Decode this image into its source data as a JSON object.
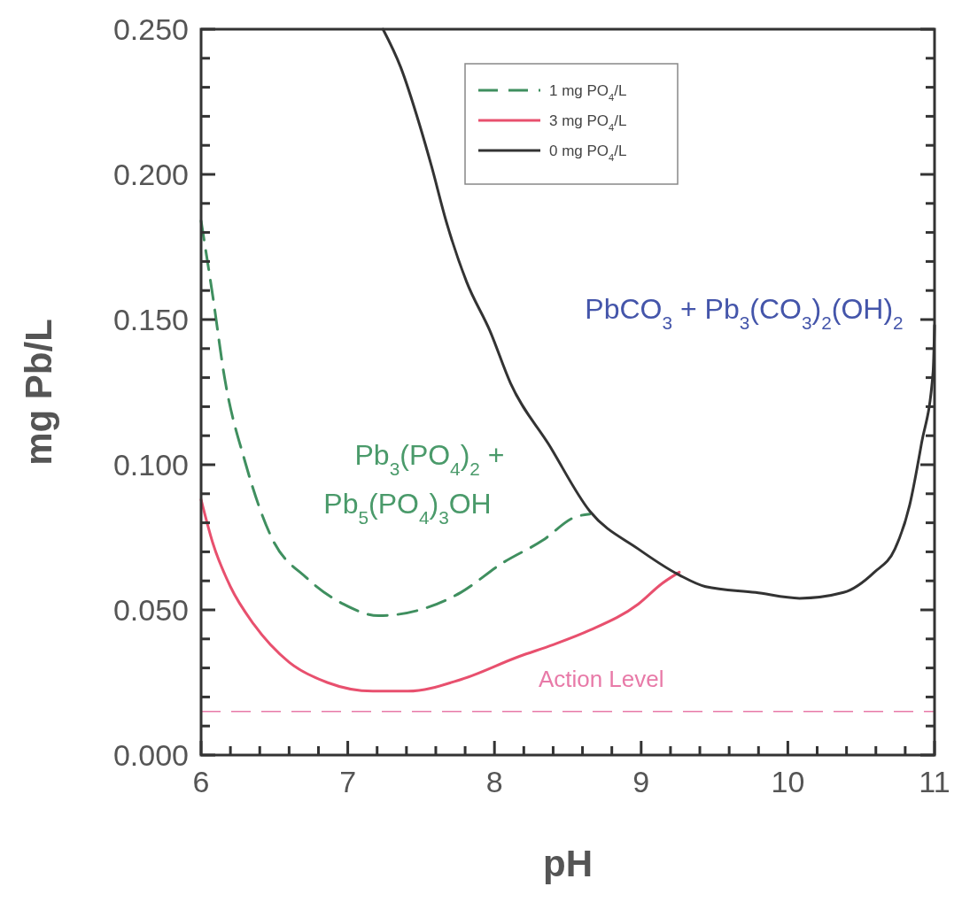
{
  "chart_data": {
    "type": "line",
    "xlabel": "pH",
    "ylabel": "mg Pb/L",
    "xlim": [
      6,
      11
    ],
    "ylim": [
      0,
      0.25
    ],
    "xticks": [
      6,
      {
        "value": 6.2,
        "label": null
      },
      {
        "value": 6.4,
        "label": null
      },
      {
        "value": 6.6,
        "label": null
      },
      {
        "value": 6.8,
        "label": null
      },
      7,
      {
        "value": 7.2,
        "label": null
      },
      {
        "value": 7.4,
        "label": null
      },
      {
        "value": 7.6,
        "label": null
      },
      {
        "value": 7.8,
        "label": null
      },
      8,
      {
        "value": 8.2,
        "label": null
      },
      {
        "value": 8.4,
        "label": null
      },
      {
        "value": 8.6,
        "label": null
      },
      {
        "value": 8.8,
        "label": null
      },
      9,
      {
        "value": 9.2,
        "label": null
      },
      {
        "value": 9.4,
        "label": null
      },
      {
        "value": 9.6,
        "label": null
      },
      {
        "value": 9.8,
        "label": null
      },
      10,
      {
        "value": 10.2,
        "label": null
      },
      {
        "value": 10.4,
        "label": null
      },
      {
        "value": 10.6,
        "label": null
      },
      {
        "value": 10.8,
        "label": null
      },
      11
    ],
    "yticks": [
      {
        "value": 0,
        "label": "0.000"
      },
      {
        "value": 0.01,
        "label": null
      },
      {
        "value": 0.02,
        "label": null
      },
      {
        "value": 0.03,
        "label": null
      },
      {
        "value": 0.04,
        "label": null
      },
      {
        "value": 0.05,
        "label": "0.050"
      },
      {
        "value": 0.06,
        "label": null
      },
      {
        "value": 0.07,
        "label": null
      },
      {
        "value": 0.08,
        "label": null
      },
      {
        "value": 0.09,
        "label": null
      },
      {
        "value": 0.1,
        "label": "0.100"
      },
      {
        "value": 0.11,
        "label": null
      },
      {
        "value": 0.12,
        "label": null
      },
      {
        "value": 0.13,
        "label": null
      },
      {
        "value": 0.14,
        "label": null
      },
      {
        "value": 0.15,
        "label": "0.150"
      },
      {
        "value": 0.16,
        "label": null
      },
      {
        "value": 0.17,
        "label": null
      },
      {
        "value": 0.18,
        "label": null
      },
      {
        "value": 0.19,
        "label": null
      },
      {
        "value": 0.2,
        "label": "0.200"
      },
      {
        "value": 0.21,
        "label": null
      },
      {
        "value": 0.22,
        "label": null
      },
      {
        "value": 0.23,
        "label": null
      },
      {
        "value": 0.24,
        "label": null
      },
      {
        "value": 0.25,
        "label": "0.250"
      }
    ],
    "grid": false,
    "legend": "top",
    "series": [
      {
        "name": "1 mg PO$_{4}$/L",
        "color": "#3f8f5f",
        "line_style": "dashed",
        "x": [
          6.0,
          6.08,
          6.16,
          6.3,
          6.48,
          6.72,
          6.97,
          7.21,
          7.49,
          7.77,
          8.05,
          8.33,
          8.55,
          8.65
        ],
        "values": [
          0.184,
          0.158,
          0.13,
          0.101,
          0.075,
          0.061,
          0.052,
          0.048,
          0.05,
          0.056,
          0.066,
          0.074,
          0.082,
          0.083
        ]
      },
      {
        "name": "3 mg PO$_{4}$/L",
        "color": "#e8506e",
        "line_style": "solid",
        "x": [
          6.0,
          6.08,
          6.2,
          6.36,
          6.6,
          6.86,
          7.17,
          7.41,
          7.77,
          8.17,
          8.4,
          8.65,
          8.98,
          9.14,
          9.26
        ],
        "values": [
          0.088,
          0.073,
          0.058,
          0.045,
          0.032,
          0.025,
          0.022,
          0.022,
          0.026,
          0.034,
          0.038,
          0.043,
          0.052,
          0.059,
          0.063
        ]
      },
      {
        "name": "0 mg PO$_{4}$/L",
        "color": "#333333",
        "line_style": "solid",
        "x": [
          7.24,
          7.36,
          7.49,
          7.57,
          7.67,
          7.81,
          7.97,
          8.11,
          8.37,
          8.65,
          8.98,
          9.26,
          9.44,
          9.78,
          10.08,
          10.38,
          10.59,
          10.73,
          10.83,
          10.91,
          10.99,
          11.0
        ],
        "values": [
          0.25,
          0.237,
          0.217,
          0.203,
          0.184,
          0.163,
          0.146,
          0.128,
          0.107,
          0.084,
          0.071,
          0.062,
          0.058,
          0.056,
          0.054,
          0.056,
          0.063,
          0.071,
          0.086,
          0.107,
          0.132,
          0.148
        ]
      }
    ],
    "ref_lines": [
      {
        "axis": "y",
        "value": 0.015,
        "label": "Action Level",
        "color": "#e87aa8",
        "line_style": "dashed"
      }
    ],
    "annotations": [
      "PbCO$_{3}$ + Pb$_{3}$(CO$_{3}$)$_{2}$(OH)$_{2}$",
      "Pb$_{3}$(PO$_{4}$)$_{2}$ +",
      "Pb$_{5}$(PO$_{4}$)$_{3}$OH"
    ]
  }
}
